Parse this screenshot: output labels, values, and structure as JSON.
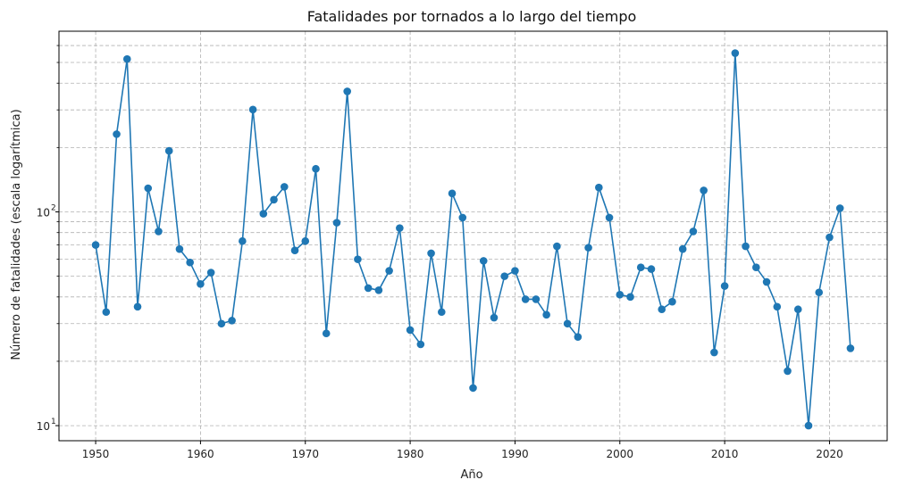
{
  "chart_data": {
    "type": "line",
    "title": "Fatalidades por tornados a lo largo del tiempo",
    "xlabel": "Año",
    "ylabel": "Número de fatalidades (escala logarítmica)",
    "yscale": "log",
    "ylim": [
      8.5,
      700
    ],
    "xlim": [
      1946.5,
      2025.5
    ],
    "grid": true,
    "line_color": "#1f77b4",
    "x_ticks": [
      1950,
      1960,
      1970,
      1980,
      1990,
      2000,
      2010,
      2020
    ],
    "x_tick_labels": [
      "1950",
      "1960",
      "1970",
      "1980",
      "1990",
      "2000",
      "2010",
      "2020"
    ],
    "y_major_ticks": [
      10,
      100
    ],
    "y_major_tick_labels": [
      "10",
      "10"
    ],
    "y_major_tick_exponents": [
      "1",
      "2"
    ],
    "y_minor_ticks": [
      20,
      30,
      40,
      50,
      60,
      70,
      80,
      90,
      200,
      300,
      400,
      500,
      600
    ],
    "x": [
      1950,
      1951,
      1952,
      1953,
      1954,
      1955,
      1956,
      1957,
      1958,
      1959,
      1960,
      1961,
      1962,
      1963,
      1964,
      1965,
      1966,
      1967,
      1968,
      1969,
      1970,
      1971,
      1972,
      1973,
      1974,
      1975,
      1976,
      1977,
      1978,
      1979,
      1980,
      1981,
      1982,
      1983,
      1984,
      1985,
      1986,
      1987,
      1988,
      1989,
      1990,
      1991,
      1992,
      1993,
      1994,
      1995,
      1996,
      1997,
      1998,
      1999,
      2000,
      2001,
      2002,
      2003,
      2004,
      2005,
      2006,
      2007,
      2008,
      2009,
      2010,
      2011,
      2012,
      2013,
      2014,
      2015,
      2016,
      2017,
      2018,
      2019,
      2020,
      2021,
      2022
    ],
    "series": [
      {
        "values": [
          70,
          34,
          231,
          519,
          36,
          129,
          81,
          193,
          67,
          58,
          46,
          52,
          30,
          31,
          73,
          301,
          98,
          114,
          131,
          66,
          73,
          159,
          27,
          89,
          366,
          60,
          44,
          43,
          53,
          84,
          28,
          24,
          64,
          34,
          122,
          94,
          15,
          59,
          32,
          50,
          53,
          39,
          39,
          33,
          69,
          30,
          26,
          68,
          130,
          94,
          41,
          40,
          55,
          54,
          35,
          38,
          67,
          81,
          126,
          22,
          45,
          553,
          69,
          55,
          47,
          36,
          18,
          35,
          10,
          42,
          76,
          104,
          23
        ]
      }
    ]
  }
}
